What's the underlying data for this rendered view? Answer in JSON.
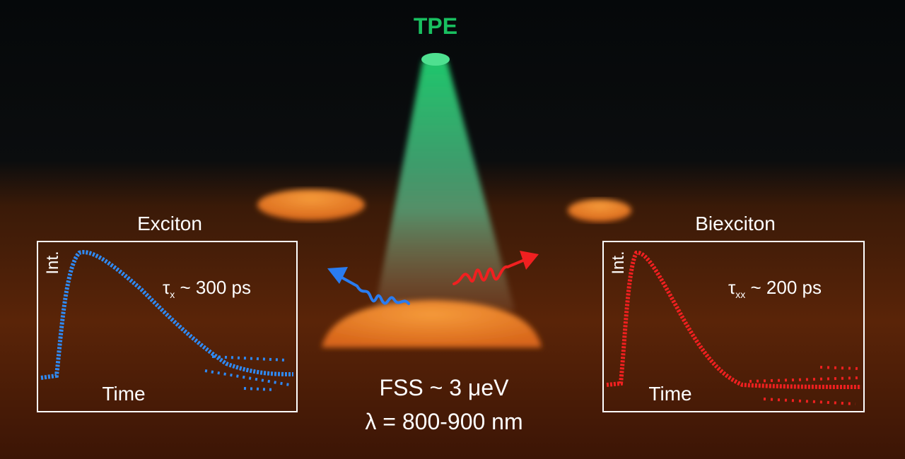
{
  "beam_label": "TPE",
  "left_panel": {
    "title": "Exciton",
    "y_label": "Int.",
    "x_label": "Time",
    "lifetime": {
      "symbol": "τ",
      "subscript": "x",
      "text": " ~ 300 ps"
    }
  },
  "right_panel": {
    "title": "Biexciton",
    "y_label": "Int.",
    "x_label": "Time",
    "lifetime": {
      "symbol": "τ",
      "subscript": "xx",
      "text": " ~ 200 ps"
    }
  },
  "caption_lines": [
    "FSS ~ 3 μeV",
    "λ = 800-900 nm"
  ]
}
